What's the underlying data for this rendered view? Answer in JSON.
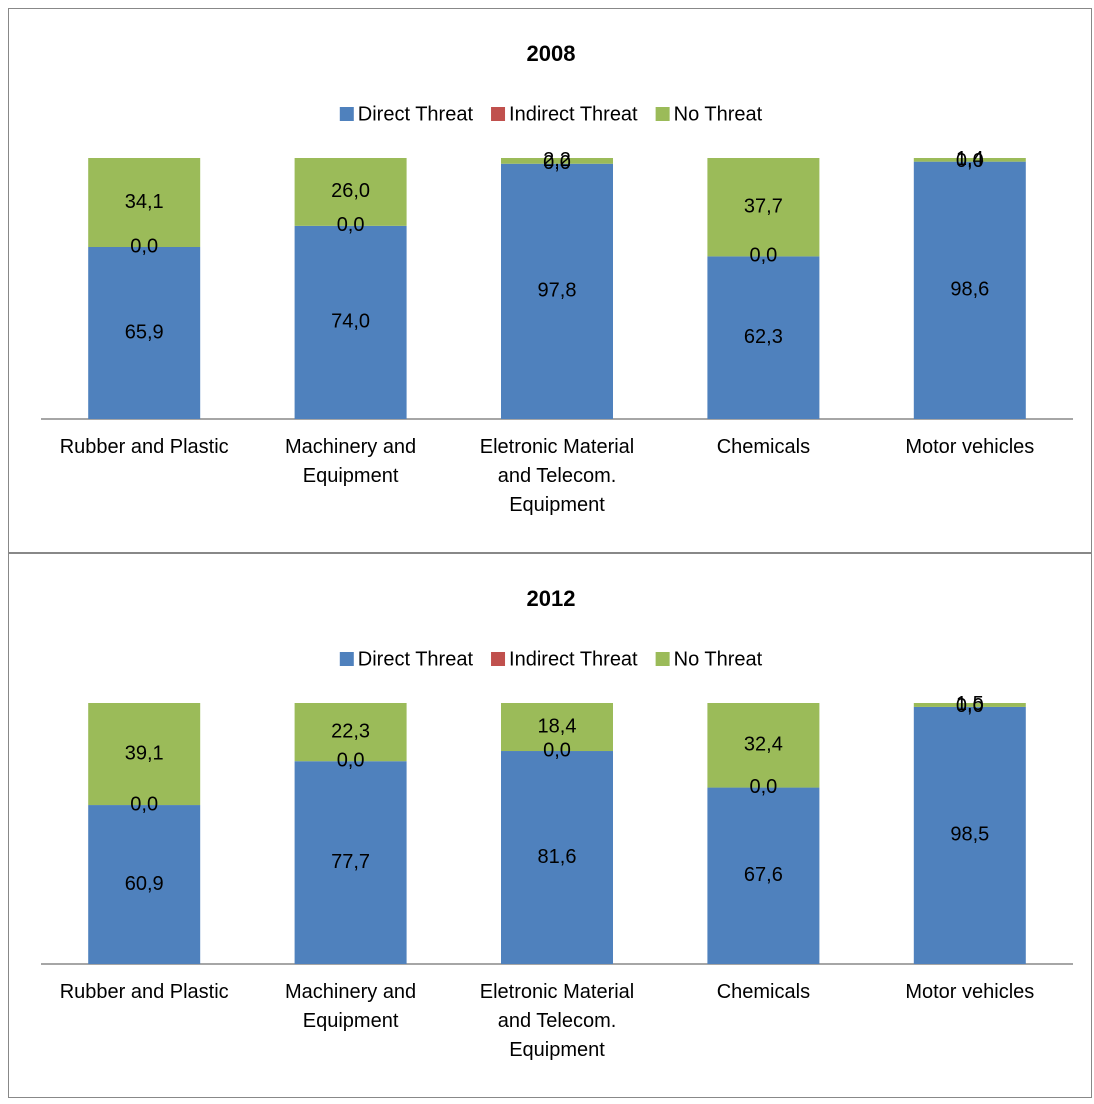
{
  "chart_data": [
    {
      "type": "bar",
      "stacked": true,
      "title": "2008",
      "categories": [
        "Rubber and Plastic",
        "Machinery and Equipment",
        "Eletronic Material and Telecom. Equipment",
        "Chemicals",
        "Motor vehicles"
      ],
      "series": [
        {
          "name": "Direct Threat",
          "color": "#4f81bd",
          "values": [
            65.9,
            74.0,
            97.8,
            62.3,
            98.6
          ],
          "value_labels": [
            "65,9",
            "74,0",
            "97,8",
            "62,3",
            "98,6"
          ]
        },
        {
          "name": "Indirect Threat",
          "color": "#c0504d",
          "values": [
            0,
            0,
            0,
            0,
            0
          ],
          "value_labels": [
            "0,0",
            "0,0",
            "0,0",
            "0,0",
            "0,0"
          ]
        },
        {
          "name": "No Threat",
          "color": "#9bbb59",
          "values": [
            34.1,
            26.0,
            2.2,
            37.7,
            1.4
          ],
          "value_labels": [
            "34,1",
            "26,0",
            "2,2",
            "37,7",
            "1,4"
          ]
        }
      ],
      "ylim": [
        0,
        100
      ],
      "legend": "top"
    },
    {
      "type": "bar",
      "stacked": true,
      "title": "2012",
      "categories": [
        "Rubber and Plastic",
        "Machinery and Equipment",
        "Eletronic Material and Telecom. Equipment",
        "Chemicals",
        "Motor vehicles"
      ],
      "series": [
        {
          "name": "Direct Threat",
          "color": "#4f81bd",
          "values": [
            60.9,
            77.7,
            81.6,
            67.6,
            98.5
          ],
          "value_labels": [
            "60,9",
            "77,7",
            "81,6",
            "67,6",
            "98,5"
          ]
        },
        {
          "name": "Indirect Threat",
          "color": "#c0504d",
          "values": [
            0,
            0,
            0,
            0,
            0
          ],
          "value_labels": [
            "0,0",
            "0,0",
            "0,0",
            "0,0",
            "0,0"
          ]
        },
        {
          "name": "No Threat",
          "color": "#9bbb59",
          "values": [
            39.1,
            22.3,
            18.4,
            32.4,
            1.5
          ],
          "value_labels": [
            "39,1",
            "22,3",
            "18,4",
            "32,4",
            "1,5"
          ]
        }
      ],
      "ylim": [
        0,
        100
      ],
      "legend": "top"
    }
  ]
}
